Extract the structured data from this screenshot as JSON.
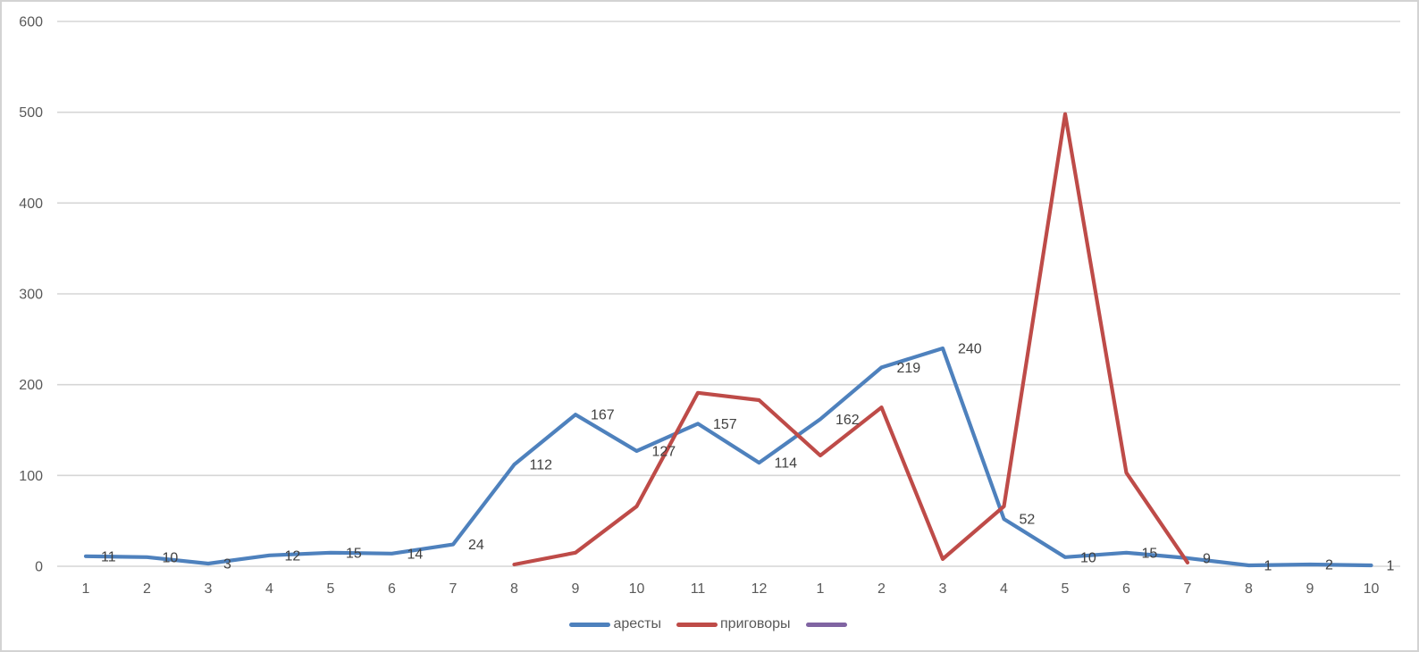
{
  "chart_data": {
    "type": "line",
    "title": "",
    "xlabel": "",
    "ylabel": "",
    "categories": [
      "1",
      "2",
      "3",
      "4",
      "5",
      "6",
      "7",
      "8",
      "9",
      "10",
      "11",
      "12",
      "1",
      "2",
      "3",
      "4",
      "5",
      "6",
      "7",
      "8",
      "9",
      "10"
    ],
    "series": [
      {
        "name": "аресты",
        "color": "#4E81BD",
        "data_labels": true,
        "values": [
          11,
          10,
          3,
          12,
          15,
          14,
          24,
          112,
          167,
          127,
          157,
          114,
          162,
          219,
          240,
          52,
          10,
          15,
          9,
          1,
          2,
          1
        ]
      },
      {
        "name": "приговоры",
        "color": "#BE4B48",
        "data_labels": false,
        "values": [
          null,
          null,
          null,
          null,
          null,
          null,
          null,
          2,
          15,
          66,
          191,
          183,
          122,
          175,
          8,
          66,
          498,
          103,
          4,
          null,
          null,
          null
        ]
      },
      {
        "name": "",
        "color": "#8064A2",
        "data_labels": false,
        "values": []
      }
    ],
    "y_ticks": [
      0,
      100,
      200,
      300,
      400,
      500,
      600
    ],
    "ylim": [
      0,
      600
    ],
    "grid": true,
    "legend_position": "bottom",
    "colors": {
      "gridline": "#D6D6D6",
      "axis_labels": "#595959",
      "data_labels": "#404040",
      "background": "#FFFFFF",
      "border": "#D3D3D3"
    }
  }
}
